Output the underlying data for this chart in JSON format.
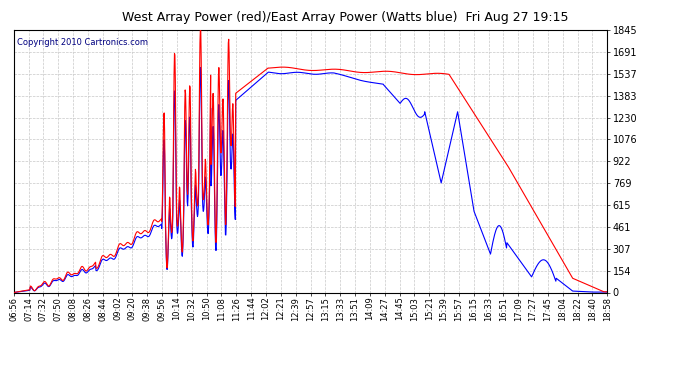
{
  "title": "West Array Power (red)/East Array Power (Watts blue)  Fri Aug 27 19:15",
  "copyright": "Copyright 2010 Cartronics.com",
  "yticks": [
    0.0,
    153.7,
    307.4,
    461.1,
    614.9,
    768.6,
    922.3,
    1076.0,
    1229.7,
    1383.4,
    1537.2,
    1690.9,
    1844.6
  ],
  "xtick_labels": [
    "06:56",
    "07:14",
    "07:32",
    "07:50",
    "08:08",
    "08:26",
    "08:44",
    "09:02",
    "09:20",
    "09:38",
    "09:56",
    "10:14",
    "10:32",
    "10:50",
    "11:08",
    "11:26",
    "11:44",
    "12:02",
    "12:21",
    "12:39",
    "12:57",
    "13:15",
    "13:33",
    "13:51",
    "14:09",
    "14:27",
    "14:45",
    "15:03",
    "15:21",
    "15:39",
    "15:57",
    "16:15",
    "16:33",
    "16:51",
    "17:09",
    "17:27",
    "17:45",
    "18:04",
    "18:22",
    "18:40",
    "18:58"
  ],
  "red_color": "#ff0000",
  "blue_color": "#0000ff",
  "bg_color": "#ffffff",
  "grid_color": "#c8c8c8",
  "title_color": "#000000",
  "copyright_color": "#000080",
  "linewidth": 0.8,
  "ymax": 1844.6,
  "ymin": 0.0,
  "figwidth": 6.9,
  "figheight": 3.75,
  "dpi": 100
}
